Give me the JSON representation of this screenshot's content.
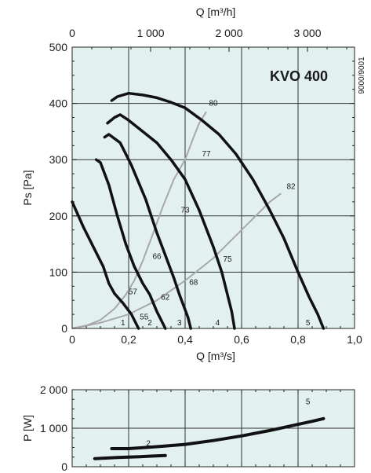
{
  "chart_data": [
    {
      "type": "line",
      "title": "KVO 400",
      "side_code": "9000/9001",
      "xlabel": "Q [m³/s]",
      "ylabel": "Ps [Pa]",
      "top_xlabel": "Q [m³/h]",
      "xlim": [
        0,
        1.0
      ],
      "ylim": [
        0,
        500
      ],
      "grid": true,
      "x_ticks": [
        0,
        0.2,
        0.4,
        0.6,
        0.8,
        1.0
      ],
      "x_tick_labels": [
        "0",
        "0,2",
        "0,4",
        "0,6",
        "0,8",
        "1,0"
      ],
      "y_ticks": [
        0,
        100,
        200,
        300,
        400,
        500
      ],
      "y_tick_labels": [
        "0",
        "100",
        "200",
        "300",
        "400",
        "500"
      ],
      "top_ticks_m3h": [
        0,
        1000,
        2000,
        3000
      ],
      "top_tick_labels": [
        "0",
        "1 000",
        "2 000",
        "3 000"
      ],
      "series": [
        {
          "name": "1",
          "x": [
            0.0,
            0.04,
            0.08,
            0.11,
            0.13,
            0.15,
            0.18,
            0.21,
            0.235
          ],
          "y": [
            225,
            180,
            140,
            110,
            80,
            62,
            45,
            25,
            0
          ]
        },
        {
          "name": "2",
          "x": [
            0.085,
            0.1,
            0.13,
            0.16,
            0.19,
            0.22,
            0.25,
            0.275,
            0.29,
            0.3,
            0.31,
            0.33
          ],
          "y": [
            300,
            295,
            255,
            200,
            150,
            110,
            80,
            60,
            42,
            30,
            20,
            0
          ]
        },
        {
          "name": "3",
          "x": [
            0.115,
            0.13,
            0.17,
            0.21,
            0.26,
            0.3,
            0.33,
            0.36,
            0.38,
            0.395,
            0.41,
            0.42
          ],
          "y": [
            340,
            345,
            330,
            290,
            230,
            170,
            130,
            90,
            60,
            40,
            20,
            0
          ]
        },
        {
          "name": "4",
          "x": [
            0.125,
            0.15,
            0.17,
            0.2,
            0.25,
            0.3,
            0.35,
            0.4,
            0.45,
            0.5,
            0.53,
            0.55,
            0.565,
            0.575
          ],
          "y": [
            365,
            375,
            380,
            370,
            350,
            330,
            300,
            265,
            210,
            145,
            100,
            60,
            30,
            0
          ]
        },
        {
          "name": "5",
          "x": [
            0.14,
            0.16,
            0.2,
            0.25,
            0.3,
            0.35,
            0.4,
            0.46,
            0.52,
            0.58,
            0.64,
            0.7,
            0.75,
            0.8,
            0.84,
            0.87,
            0.89
          ],
          "y": [
            405,
            412,
            418,
            415,
            410,
            402,
            392,
            370,
            345,
            310,
            265,
            210,
            160,
            100,
            55,
            25,
            0
          ]
        }
      ],
      "efficiency_curves": [
        {
          "x": [
            0.0,
            0.05,
            0.1,
            0.15,
            0.19,
            0.22,
            0.25,
            0.28,
            0.32,
            0.36,
            0.4,
            0.43,
            0.45,
            0.475
          ],
          "y": [
            0,
            5,
            15,
            35,
            60,
            85,
            120,
            160,
            215,
            265,
            300,
            340,
            365,
            385
          ]
        },
        {
          "x": [
            0.0,
            0.1,
            0.2,
            0.3,
            0.4,
            0.5,
            0.6,
            0.7,
            0.74
          ],
          "y": [
            0,
            10,
            25,
            50,
            85,
            125,
            175,
            225,
            240
          ]
        }
      ],
      "point_labels": [
        {
          "text": "1",
          "x": 0.18,
          "y": 10
        },
        {
          "text": "2",
          "x": 0.275,
          "y": 10
        },
        {
          "text": "3",
          "x": 0.38,
          "y": 10
        },
        {
          "text": "4",
          "x": 0.515,
          "y": 10
        },
        {
          "text": "5",
          "x": 0.835,
          "y": 10
        },
        {
          "text": "55",
          "x": 0.255,
          "y": 20
        },
        {
          "text": "57",
          "x": 0.215,
          "y": 65
        },
        {
          "text": "62",
          "x": 0.33,
          "y": 55
        },
        {
          "text": "66",
          "x": 0.3,
          "y": 128
        },
        {
          "text": "68",
          "x": 0.43,
          "y": 82
        },
        {
          "text": "73",
          "x": 0.4,
          "y": 210
        },
        {
          "text": "75",
          "x": 0.55,
          "y": 123
        },
        {
          "text": "77",
          "x": 0.475,
          "y": 310
        },
        {
          "text": "80",
          "x": 0.5,
          "y": 400
        },
        {
          "text": "82",
          "x": 0.775,
          "y": 252
        }
      ]
    },
    {
      "type": "line",
      "ylabel": "P [W]",
      "xlim": [
        0,
        1.0
      ],
      "ylim": [
        0,
        2000
      ],
      "grid": true,
      "y_ticks": [
        0,
        1000,
        2000
      ],
      "y_tick_labels": [
        "0",
        "1 000",
        "2 000"
      ],
      "series": [
        {
          "name": "",
          "x": [
            0.08,
            0.12,
            0.16,
            0.2,
            0.24,
            0.28,
            0.33
          ],
          "y": [
            210,
            225,
            240,
            250,
            260,
            275,
            290
          ]
        },
        {
          "name": "2",
          "x": [
            0.14,
            0.2,
            0.3,
            0.4,
            0.5,
            0.6,
            0.7,
            0.8,
            0.85,
            0.89
          ],
          "y": [
            470,
            470,
            520,
            580,
            680,
            800,
            940,
            1100,
            1180,
            1250
          ]
        }
      ],
      "point_labels": [
        {
          "text": "2",
          "x": 0.27,
          "y": 600
        },
        {
          "text": "5",
          "x": 0.835,
          "y": 1680
        }
      ]
    }
  ]
}
